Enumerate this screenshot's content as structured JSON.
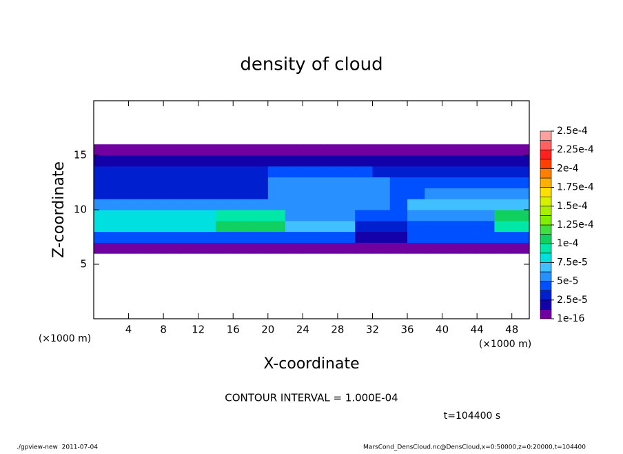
{
  "chart_data": {
    "type": "contour",
    "title": "density of cloud",
    "xlabel": "X-coordinate",
    "ylabel": "Z-coordinate",
    "xunit": "(×1000 m)",
    "yunit": "(×1000 m)",
    "contour_text": "CONTOUR INTERVAL = 1.000E-04",
    "time_text": "t=104400 s",
    "footer_left": "./gpview-new  2011-07-04",
    "footer_right": "MarsCond_DensCloud.nc@DensCloud,x=0:50000,z=0:20000,t=104400",
    "xlim": [
      0,
      50
    ],
    "xticks": [
      4,
      8,
      12,
      16,
      20,
      24,
      28,
      32,
      36,
      40,
      44,
      48
    ],
    "ylim": [
      0,
      20
    ],
    "yticks": [
      5,
      10,
      15
    ],
    "x": [
      1,
      3,
      5,
      7,
      9,
      11,
      13,
      15,
      17,
      19,
      21,
      23,
      25,
      27,
      29,
      31,
      33,
      35,
      37,
      39,
      41,
      43,
      45,
      47,
      49
    ],
    "z": [
      6.5,
      7.5,
      8.5,
      9.5,
      10.5,
      11.5,
      12.5,
      13.5,
      14.5,
      15.5
    ],
    "values": [
      [
        1e-06,
        1e-06,
        1e-06,
        1e-06,
        1e-06,
        1e-06,
        1e-06,
        1e-06,
        1e-06,
        1e-06,
        1e-06,
        1e-06,
        1e-06,
        1e-06,
        1e-06,
        1e-06,
        1e-06,
        1e-06,
        1e-06,
        1e-06,
        1e-06,
        1e-06,
        1e-06,
        1e-06,
        1e-06
      ],
      [
        4e-05,
        4e-05,
        4e-05,
        4e-05,
        4e-05,
        4e-05,
        4e-05,
        4e-05,
        4e-05,
        4e-05,
        4e-05,
        4e-05,
        4e-05,
        4e-05,
        4e-05,
        2e-05,
        2e-05,
        2e-05,
        4e-05,
        4e-05,
        4e-05,
        4e-05,
        4e-05,
        4e-05,
        4e-05
      ],
      [
        8.5e-05,
        8.5e-05,
        8.5e-05,
        8.5e-05,
        8.5e-05,
        8.5e-05,
        8.5e-05,
        0.000105,
        0.000105,
        0.000105,
        0.000105,
        7e-05,
        7e-05,
        7e-05,
        7e-05,
        3e-05,
        3e-05,
        3e-05,
        4e-05,
        4e-05,
        4e-05,
        4e-05,
        4e-05,
        9e-05,
        9e-05
      ],
      [
        8e-05,
        8e-05,
        8e-05,
        8e-05,
        8e-05,
        8e-05,
        8e-05,
        9e-05,
        9e-05,
        9e-05,
        9e-05,
        6e-05,
        6e-05,
        6e-05,
        6e-05,
        4e-05,
        4e-05,
        4e-05,
        6e-05,
        6e-05,
        6e-05,
        6e-05,
        6e-05,
        0.000105,
        0.000105
      ],
      [
        5e-05,
        5e-05,
        5e-05,
        5e-05,
        5e-05,
        5e-05,
        5e-05,
        5e-05,
        5e-05,
        5e-05,
        6e-05,
        6e-05,
        6e-05,
        6e-05,
        6e-05,
        6e-05,
        6e-05,
        4e-05,
        6.5e-05,
        6.5e-05,
        6.5e-05,
        6.5e-05,
        6.5e-05,
        6.5e-05,
        6.5e-05
      ],
      [
        3.5e-05,
        3.5e-05,
        3.5e-05,
        3.5e-05,
        3.5e-05,
        3.5e-05,
        3.5e-05,
        3.5e-05,
        3.5e-05,
        3.5e-05,
        6e-05,
        6e-05,
        6e-05,
        6e-05,
        6e-05,
        6e-05,
        6e-05,
        4e-05,
        4e-05,
        6e-05,
        6e-05,
        6e-05,
        6e-05,
        6e-05,
        6e-05
      ],
      [
        3e-05,
        3e-05,
        3e-05,
        3e-05,
        3e-05,
        3e-05,
        3e-05,
        3e-05,
        3e-05,
        3e-05,
        5.5e-05,
        5.5e-05,
        5.5e-05,
        5.5e-05,
        5.5e-05,
        5.5e-05,
        5.5e-05,
        4e-05,
        4e-05,
        4e-05,
        4e-05,
        4e-05,
        4e-05,
        4e-05,
        4e-05
      ],
      [
        2.5e-05,
        2.5e-05,
        2.5e-05,
        2.5e-05,
        2.5e-05,
        2.5e-05,
        2.5e-05,
        2.5e-05,
        2.5e-05,
        2.5e-05,
        4e-05,
        4e-05,
        4e-05,
        4e-05,
        4e-05,
        4e-05,
        2.5e-05,
        2.5e-05,
        2.5e-05,
        2.5e-05,
        2.5e-05,
        2.5e-05,
        2.5e-05,
        2.5e-05,
        2.5e-05
      ],
      [
        2e-05,
        2e-05,
        2e-05,
        2e-05,
        2e-05,
        2e-05,
        2e-05,
        2e-05,
        2e-05,
        2e-05,
        2e-05,
        2e-05,
        2e-05,
        2e-05,
        2e-05,
        2e-05,
        2e-05,
        2e-05,
        2e-05,
        2e-05,
        2e-05,
        2e-05,
        2e-05,
        2e-05,
        2e-05
      ],
      [
        1e-06,
        1e-06,
        1e-06,
        1e-06,
        1e-06,
        1e-06,
        1e-06,
        1e-06,
        1e-06,
        1e-06,
        1e-06,
        1e-06,
        1e-06,
        1e-06,
        1e-06,
        1e-06,
        1e-06,
        1e-06,
        1e-06,
        1e-06,
        1e-06,
        1e-06,
        1e-06,
        1e-06,
        1e-06
      ]
    ],
    "colorbar": {
      "levels": [
        {
          "value": 1e-16,
          "label": "1e-16"
        },
        {
          "value": 2.5e-05,
          "label": "2.5e-5"
        },
        {
          "value": 5e-05,
          "label": "5e-5"
        },
        {
          "value": 7.5e-05,
          "label": "7.5e-5"
        },
        {
          "value": 0.0001,
          "label": "1e-4"
        },
        {
          "value": 0.000125,
          "label": "1.25e-4"
        },
        {
          "value": 0.00015,
          "label": "1.5e-4"
        },
        {
          "value": 0.000175,
          "label": "1.75e-4"
        },
        {
          "value": 0.0002,
          "label": "2e-4"
        },
        {
          "value": 0.000225,
          "label": "2.25e-4"
        },
        {
          "value": 0.00025,
          "label": "2.5e-4"
        }
      ],
      "colors": [
        "#7000a0",
        "#1400a8",
        "#0020d0",
        "#0050ff",
        "#2890ff",
        "#40c0ff",
        "#00e0e0",
        "#00e8a8",
        "#10d060",
        "#40e040",
        "#80f000",
        "#a8f000",
        "#d8f000",
        "#ffe000",
        "#ffb000",
        "#ff8000",
        "#ff4000",
        "#ff2020",
        "#ff6060",
        "#ffa0a0"
      ]
    }
  }
}
